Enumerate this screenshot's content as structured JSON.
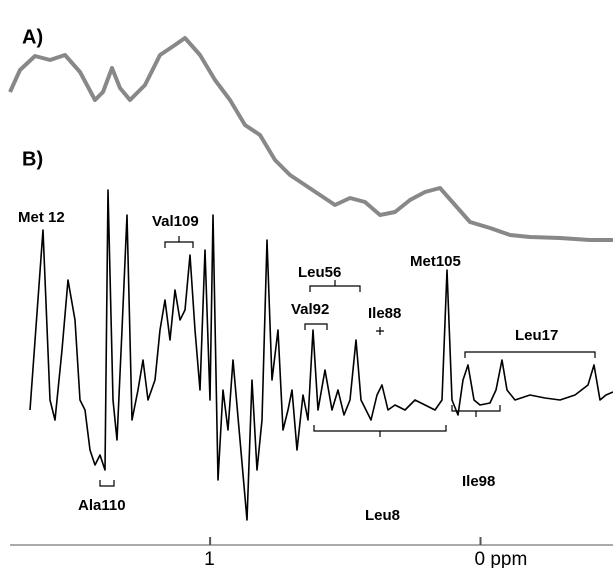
{
  "panels": [
    {
      "label": "A)"
    },
    {
      "label": "B)"
    }
  ],
  "annotations": [
    "Met 12",
    "Val109",
    "Leu56",
    "Met105",
    "Val92",
    "Ile88",
    "Leu17",
    "Ala110",
    "Leu8",
    "Ile98"
  ],
  "x_axis": {
    "xlim": [
      1.74,
      -0.49
    ],
    "ticks": [
      {
        "value": 1,
        "label": "1"
      },
      {
        "value": 0,
        "label": "0 ppm"
      }
    ]
  }
}
